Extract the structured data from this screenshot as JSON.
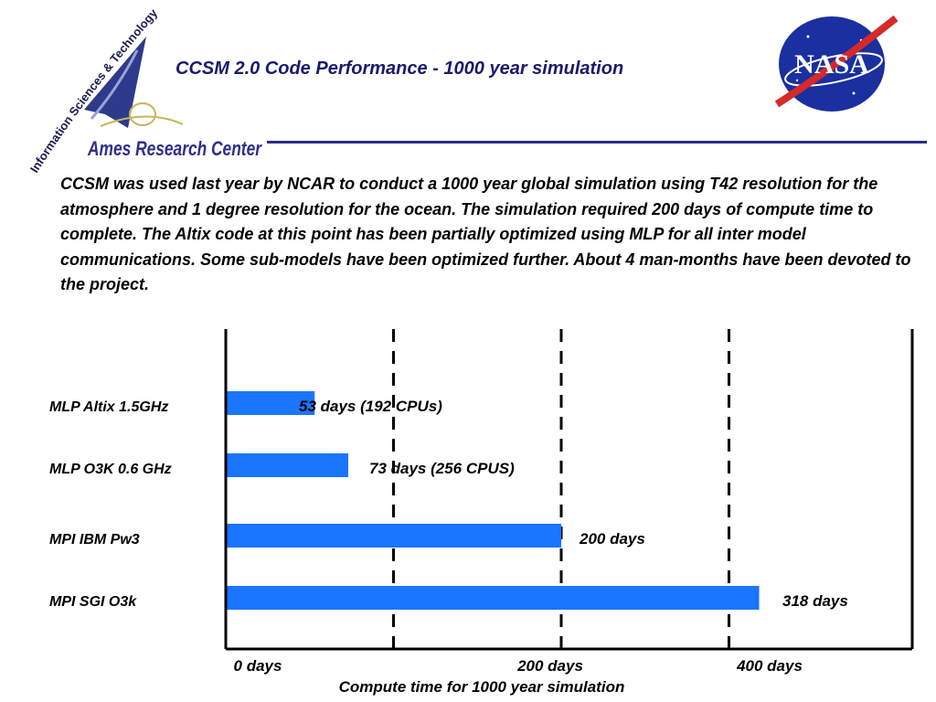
{
  "header": {
    "title": "CCSM 2.0 Code Performance - 1000 year simulation",
    "ames_logo_text": "Ames Research Center",
    "ames_logo_arc_text": "Information Sciences & Technology",
    "nasa_logo_text": "NASA"
  },
  "description": "CCSM  was used last year by NCAR to conduct a 1000 year global simulation using T42 resolution for the atmosphere and 1 degree resolution for the ocean. The simulation required 200 days of compute time to complete.  The Altix code at this point has been partially optimized using MLP for all inter model communications. Some sub-models have been optimized further. About 4 man-months have been devoted to the project.",
  "colors": {
    "bar": "#1a75ff",
    "title": "#1a1a6e",
    "rule": "#2c2c8a"
  },
  "chart_data": {
    "type": "bar",
    "orientation": "horizontal",
    "categories": [
      "MLP Altix 1.5GHz",
      "MLP  O3K 0.6 GHz",
      "MPI  IBM Pw3",
      "MPI  SGI O3k"
    ],
    "values": [
      53,
      73,
      200,
      318
    ],
    "data_labels": [
      "53 days (192 CPUs)",
      "73 days (256 CPUS)",
      "200 days",
      "318 days"
    ],
    "xlabel": "Compute time for 1000 year simulation",
    "xticks": [
      {
        "value": 0,
        "label": "0 days"
      },
      {
        "value": 200,
        "label": "200 days"
      },
      {
        "value": 400,
        "label": "400 days"
      }
    ],
    "gridlines_dashed": [
      100,
      200,
      300
    ],
    "xlim": [
      0,
      400
    ],
    "grid": true
  }
}
